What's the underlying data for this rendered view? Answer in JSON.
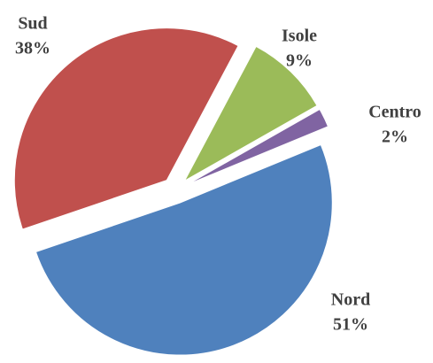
{
  "chart_data": {
    "type": "pie",
    "categories": [
      "Isole",
      "Centro",
      "Nord",
      "Sud"
    ],
    "values": [
      9,
      2,
      51,
      38
    ],
    "value_labels": [
      "9%",
      "2%",
      "51%",
      "38%"
    ],
    "colors": [
      "#9bbb59",
      "#8064a2",
      "#4f81bd",
      "#c0504d"
    ]
  }
}
